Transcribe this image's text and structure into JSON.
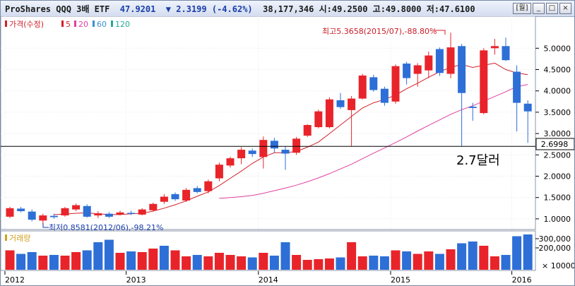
{
  "header": {
    "name": "ProShares QQQ 3배 ETF",
    "price": "47.9201",
    "change_arrow": "▼",
    "change": "2.3199",
    "change_pct": "(-4.62%)",
    "volume": "38,177,346",
    "open_label": "시:49.2500",
    "high_label": "고:49.8000",
    "low_label": "저:47.6100",
    "btn_week": "[월]",
    "btn_min": "_",
    "btn_max": "□",
    "btn_close": "×"
  },
  "legend": {
    "price": "가격(수정)",
    "ma5": "5",
    "ma20": "20",
    "ma60": "60",
    "ma120": "120",
    "volume": "거래량"
  },
  "colors": {
    "up": "#e8242a",
    "down": "#2d6fd6",
    "ma5": "#d0202a",
    "ma20": "#e040a0",
    "ma60": "#3b8fd0",
    "ma120": "#25a89a",
    "hline": "#000000"
  },
  "annotations": {
    "high": "최고5.3658(2015/07),-88.80%",
    "low": "최저0.8581(2012/06),-98.21%",
    "hline_value": "2.6998",
    "note": "2.7달러"
  },
  "chart_data": {
    "type": "candlestick",
    "yaxis": {
      "ticks": [
        "5.0000",
        "4.5000",
        "4.0000",
        "3.5000",
        "3.0000",
        "2.5000",
        "2.0000",
        "1.5000",
        "1.0000"
      ],
      "range": [
        0.75,
        5.75
      ]
    },
    "xaxis": {
      "labels": [
        "2012",
        "2013",
        "2014",
        "2015",
        "2016"
      ]
    },
    "horizontal_line": 2.6998,
    "candles": [
      {
        "o": 1.05,
        "c": 1.25,
        "h": 1.28,
        "l": 1.02
      },
      {
        "o": 1.24,
        "c": 1.18,
        "h": 1.28,
        "l": 1.15
      },
      {
        "o": 1.17,
        "c": 0.98,
        "h": 1.22,
        "l": 0.94
      },
      {
        "o": 0.96,
        "c": 1.08,
        "h": 1.12,
        "l": 0.8581
      },
      {
        "o": 1.07,
        "c": 1.04,
        "h": 1.12,
        "l": 1.0
      },
      {
        "o": 1.08,
        "c": 1.25,
        "h": 1.28,
        "l": 1.05
      },
      {
        "o": 1.22,
        "c": 1.32,
        "h": 1.36,
        "l": 1.18
      },
      {
        "o": 1.3,
        "c": 1.05,
        "h": 1.34,
        "l": 1.03
      },
      {
        "o": 1.08,
        "c": 1.13,
        "h": 1.18,
        "l": 1.02
      },
      {
        "o": 1.12,
        "c": 1.05,
        "h": 1.16,
        "l": 1.02
      },
      {
        "o": 1.1,
        "c": 1.15,
        "h": 1.19,
        "l": 1.08
      },
      {
        "o": 1.14,
        "c": 1.12,
        "h": 1.19,
        "l": 1.09
      },
      {
        "o": 1.1,
        "c": 1.22,
        "h": 1.25,
        "l": 1.08
      },
      {
        "o": 1.2,
        "c": 1.35,
        "h": 1.38,
        "l": 1.18
      },
      {
        "o": 1.4,
        "c": 1.52,
        "h": 1.58,
        "l": 1.35
      },
      {
        "o": 1.58,
        "c": 1.46,
        "h": 1.62,
        "l": 1.42
      },
      {
        "o": 1.43,
        "c": 1.68,
        "h": 1.72,
        "l": 1.4
      },
      {
        "o": 1.72,
        "c": 1.63,
        "h": 1.77,
        "l": 1.6
      },
      {
        "o": 1.65,
        "c": 1.88,
        "h": 1.92,
        "l": 1.6
      },
      {
        "o": 1.95,
        "c": 2.27,
        "h": 2.32,
        "l": 1.88
      },
      {
        "o": 2.25,
        "c": 2.42,
        "h": 2.46,
        "l": 2.2
      },
      {
        "o": 2.42,
        "c": 2.62,
        "h": 2.68,
        "l": 2.28
      },
      {
        "o": 2.6,
        "c": 2.52,
        "h": 2.65,
        "l": 2.45
      },
      {
        "o": 2.45,
        "c": 2.85,
        "h": 2.93,
        "l": 2.18
      },
      {
        "o": 2.83,
        "c": 2.65,
        "h": 2.9,
        "l": 2.55
      },
      {
        "o": 2.62,
        "c": 2.53,
        "h": 2.7,
        "l": 2.15
      },
      {
        "o": 2.55,
        "c": 2.88,
        "h": 2.92,
        "l": 2.5
      },
      {
        "o": 2.95,
        "c": 3.2,
        "h": 3.22,
        "l": 2.92
      },
      {
        "o": 3.15,
        "c": 3.52,
        "h": 3.56,
        "l": 3.12
      },
      {
        "o": 3.15,
        "c": 3.8,
        "h": 3.85,
        "l": 3.12
      },
      {
        "o": 3.78,
        "c": 3.62,
        "h": 3.95,
        "l": 3.58
      },
      {
        "o": 3.55,
        "c": 3.82,
        "h": 3.88,
        "l": 2.7
      },
      {
        "o": 3.82,
        "c": 4.36,
        "h": 4.4,
        "l": 3.8
      },
      {
        "o": 4.32,
        "c": 4.02,
        "h": 4.38,
        "l": 3.98
      },
      {
        "o": 4.05,
        "c": 3.72,
        "h": 4.1,
        "l": 3.65
      },
      {
        "o": 3.75,
        "c": 4.58,
        "h": 4.62,
        "l": 3.7
      },
      {
        "o": 4.64,
        "c": 4.3,
        "h": 4.68,
        "l": 4.15
      },
      {
        "o": 4.4,
        "c": 4.6,
        "h": 4.65,
        "l": 4.1
      },
      {
        "o": 4.48,
        "c": 4.83,
        "h": 4.92,
        "l": 4.3
      },
      {
        "o": 4.98,
        "c": 4.42,
        "h": 5.02,
        "l": 4.35
      },
      {
        "o": 4.4,
        "c": 5.02,
        "h": 5.3658,
        "l": 4.3
      },
      {
        "o": 5.05,
        "c": 3.95,
        "h": 5.1,
        "l": 2.7
      },
      {
        "o": 3.63,
        "c": 3.6,
        "h": 3.72,
        "l": 3.3
      },
      {
        "o": 3.48,
        "c": 4.95,
        "h": 5.0,
        "l": 3.45
      },
      {
        "o": 5.0,
        "c": 5.05,
        "h": 5.22,
        "l": 4.85
      },
      {
        "o": 5.05,
        "c": 4.72,
        "h": 5.25,
        "l": 4.7
      },
      {
        "o": 4.45,
        "c": 3.72,
        "h": 4.6,
        "l": 3.05
      },
      {
        "o": 3.7,
        "c": 3.52,
        "h": 3.78,
        "l": 2.78
      }
    ],
    "ma5": [
      null,
      null,
      null,
      null,
      1.1,
      1.11,
      1.13,
      1.14,
      1.12,
      1.1,
      1.1,
      1.12,
      1.13,
      1.18,
      1.25,
      1.33,
      1.42,
      1.53,
      1.63,
      1.78,
      1.95,
      2.12,
      2.3,
      2.45,
      2.55,
      2.55,
      2.58,
      2.68,
      2.8,
      3.0,
      3.2,
      3.4,
      3.6,
      3.72,
      3.8,
      3.9,
      4.05,
      4.18,
      4.32,
      4.45,
      4.55,
      4.62,
      4.55,
      4.6,
      4.65,
      4.5,
      4.42,
      4.38
    ],
    "ma20": [
      null,
      null,
      null,
      null,
      null,
      null,
      null,
      null,
      null,
      null,
      null,
      null,
      null,
      null,
      null,
      null,
      null,
      null,
      null,
      1.48,
      1.5,
      1.52,
      1.55,
      1.6,
      1.66,
      1.72,
      1.79,
      1.87,
      1.96,
      2.06,
      2.17,
      2.28,
      2.41,
      2.54,
      2.66,
      2.79,
      2.92,
      3.06,
      3.19,
      3.32,
      3.45,
      3.56,
      3.65,
      3.76,
      3.87,
      3.98,
      4.1,
      4.15
    ],
    "volume": {
      "ticks": [
        "300,000",
        "200,000"
      ],
      "unit": "× 10000",
      "bars": [
        {
          "v": 0.55,
          "up": true
        },
        {
          "v": 0.45,
          "up": false
        },
        {
          "v": 0.5,
          "up": false
        },
        {
          "v": 0.4,
          "up": true
        },
        {
          "v": 0.42,
          "up": false
        },
        {
          "v": 0.4,
          "up": true
        },
        {
          "v": 0.5,
          "up": true
        },
        {
          "v": 0.55,
          "up": false
        },
        {
          "v": 0.78,
          "up": false
        },
        {
          "v": 0.85,
          "up": false
        },
        {
          "v": 0.48,
          "up": true
        },
        {
          "v": 0.52,
          "up": false
        },
        {
          "v": 0.5,
          "up": true
        },
        {
          "v": 0.6,
          "up": true
        },
        {
          "v": 0.68,
          "up": false
        },
        {
          "v": 0.55,
          "up": true
        },
        {
          "v": 0.38,
          "up": true
        },
        {
          "v": 0.42,
          "up": false
        },
        {
          "v": 0.38,
          "up": true
        },
        {
          "v": 0.48,
          "up": true
        },
        {
          "v": 0.42,
          "up": true
        },
        {
          "v": 0.38,
          "up": true
        },
        {
          "v": 0.35,
          "up": false
        },
        {
          "v": 0.48,
          "up": true
        },
        {
          "v": 0.4,
          "up": false
        },
        {
          "v": 0.78,
          "up": false
        },
        {
          "v": 0.42,
          "up": true
        },
        {
          "v": 0.28,
          "up": true
        },
        {
          "v": 0.3,
          "up": true
        },
        {
          "v": 0.32,
          "up": true
        },
        {
          "v": 0.35,
          "up": false
        },
        {
          "v": 0.78,
          "up": true
        },
        {
          "v": 0.38,
          "up": true
        },
        {
          "v": 0.4,
          "up": false
        },
        {
          "v": 0.38,
          "up": false
        },
        {
          "v": 0.55,
          "up": true
        },
        {
          "v": 0.52,
          "up": false
        },
        {
          "v": 0.45,
          "up": true
        },
        {
          "v": 0.52,
          "up": true
        },
        {
          "v": 0.45,
          "up": false
        },
        {
          "v": 0.58,
          "up": true
        },
        {
          "v": 0.75,
          "up": false
        },
        {
          "v": 0.8,
          "up": false
        },
        {
          "v": 0.68,
          "up": true
        },
        {
          "v": 0.38,
          "up": true
        },
        {
          "v": 0.42,
          "up": false
        },
        {
          "v": 0.95,
          "up": false
        },
        {
          "v": 1.0,
          "up": false
        }
      ]
    }
  }
}
